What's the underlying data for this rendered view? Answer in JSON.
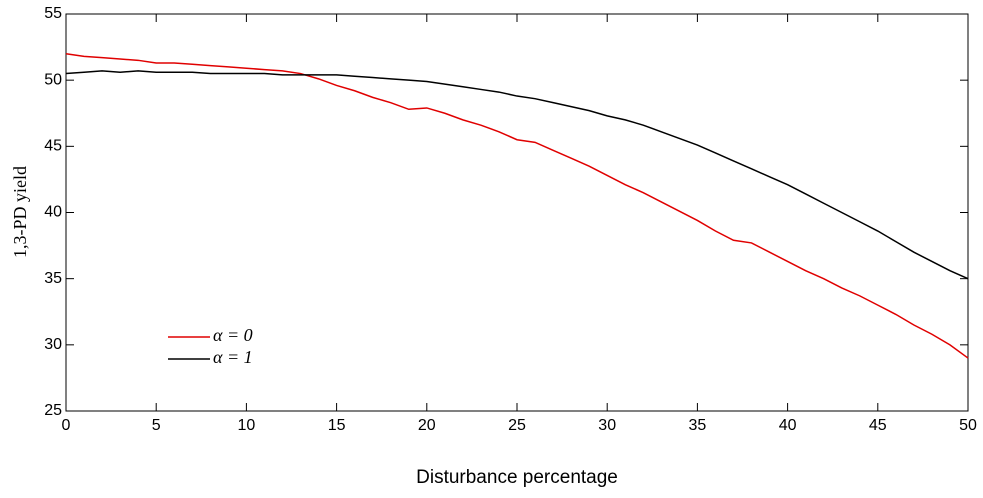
{
  "chart_data": {
    "type": "line",
    "x_label": "Disturbance percentage",
    "y_label": "1,3-PD yield",
    "x": [
      0,
      1,
      2,
      3,
      4,
      5,
      6,
      7,
      8,
      9,
      10,
      11,
      12,
      13,
      14,
      15,
      16,
      17,
      18,
      19,
      20,
      21,
      22,
      23,
      24,
      25,
      26,
      27,
      28,
      29,
      30,
      31,
      32,
      33,
      34,
      35,
      36,
      37,
      38,
      39,
      40,
      41,
      42,
      43,
      44,
      45,
      46,
      47,
      48,
      49,
      50
    ],
    "series": [
      {
        "name": "α = 0",
        "color": "#e00000",
        "values": [
          52,
          51.8,
          51.7,
          51.6,
          51.5,
          51.3,
          51.3,
          51.2,
          51.1,
          51,
          50.9,
          50.8,
          50.7,
          50.5,
          50.1,
          49.6,
          49.2,
          48.7,
          48.3,
          47.8,
          47.9,
          47.5,
          47,
          46.6,
          46.1,
          45.5,
          45.3,
          44.7,
          44.1,
          43.5,
          42.8,
          42.1,
          41.5,
          40.8,
          40.1,
          39.4,
          38.6,
          37.9,
          37.7,
          37,
          36.3,
          35.6,
          35,
          34.3,
          33.7,
          33,
          32.3,
          31.5,
          30.8,
          30,
          29
        ]
      },
      {
        "name": "α = 1",
        "color": "#000000",
        "values": [
          50.5,
          50.6,
          50.7,
          50.6,
          50.7,
          50.6,
          50.6,
          50.6,
          50.5,
          50.5,
          50.5,
          50.5,
          50.4,
          50.4,
          50.4,
          50.4,
          50.3,
          50.2,
          50.1,
          50,
          49.9,
          49.7,
          49.5,
          49.3,
          49.1,
          48.8,
          48.6,
          48.3,
          48,
          47.7,
          47.3,
          47,
          46.6,
          46.1,
          45.6,
          45.1,
          44.5,
          43.9,
          43.3,
          42.7,
          42.1,
          41.4,
          40.7,
          40,
          39.3,
          38.6,
          37.8,
          37,
          36.3,
          35.6,
          35
        ]
      }
    ],
    "xlim": [
      0,
      50
    ],
    "xticks": [
      0,
      5,
      10,
      15,
      20,
      25,
      30,
      35,
      40,
      45,
      50
    ],
    "ylim": [
      25,
      55
    ],
    "yticks": [
      25,
      30,
      35,
      40,
      45,
      50,
      55
    ],
    "legend": "lower left"
  }
}
